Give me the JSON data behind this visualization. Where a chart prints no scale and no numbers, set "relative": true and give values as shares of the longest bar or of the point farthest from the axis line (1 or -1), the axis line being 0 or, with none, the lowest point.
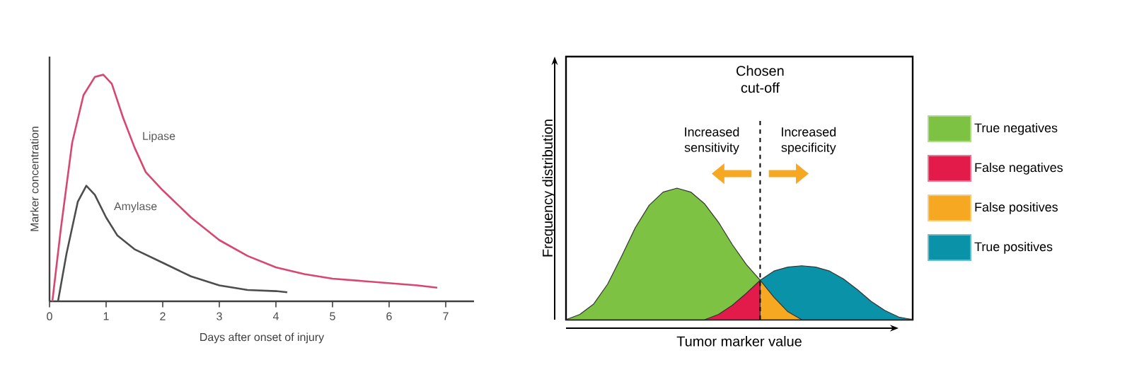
{
  "chart_data": [
    {
      "type": "line",
      "relative": true,
      "xlim": [
        0,
        7.5
      ],
      "xticks": [
        0,
        1,
        2,
        3,
        4,
        5,
        6,
        7
      ],
      "xlabel": "Days after onset of injury",
      "ylabel": "Marker concentration",
      "marker": "none",
      "line_style": "solid",
      "series": [
        {
          "name": "Lipase",
          "color": "#d9466f",
          "x": [
            0.05,
            0.2,
            0.4,
            0.6,
            0.8,
            0.95,
            1.1,
            1.3,
            1.5,
            1.7,
            2.0,
            2.5,
            3.0,
            3.5,
            4.0,
            4.5,
            5.0,
            5.5,
            6.0,
            6.5,
            6.85
          ],
          "values": [
            0,
            0.32,
            0.7,
            0.91,
            0.99,
            1.0,
            0.96,
            0.81,
            0.68,
            0.57,
            0.49,
            0.37,
            0.27,
            0.2,
            0.15,
            0.12,
            0.1,
            0.09,
            0.08,
            0.07,
            0.06
          ]
        },
        {
          "name": "Amylase",
          "color": "#4d4d4d",
          "x": [
            0.15,
            0.3,
            0.5,
            0.65,
            0.8,
            1.0,
            1.2,
            1.5,
            2.0,
            2.5,
            3.0,
            3.5,
            4.0,
            4.2
          ],
          "values": [
            0,
            0.21,
            0.44,
            0.51,
            0.47,
            0.37,
            0.29,
            0.23,
            0.17,
            0.11,
            0.07,
            0.05,
            0.045,
            0.04
          ]
        }
      ]
    },
    {
      "type": "area",
      "relative": true,
      "categories": [
        null,
        null,
        null,
        null,
        null,
        null,
        null,
        null,
        null,
        null,
        null,
        null,
        null,
        null,
        null,
        null,
        null,
        null,
        null,
        null,
        null,
        null,
        null,
        null,
        null,
        null
      ],
      "xlabel": "Tumor marker value",
      "ylabel": "Frequency distribution",
      "legend": "right",
      "annotations": [
        "Increased sensitivity",
        "Increased specificity"
      ],
      "ref_lines": [
        {
          "axis": "x",
          "label": "Chosen cut-off",
          "line_style": "dashed"
        }
      ],
      "series": [
        {
          "name": "True negatives",
          "color": "#7dc242",
          "values": [
            0,
            0.04,
            0.12,
            0.27,
            0.48,
            0.7,
            0.87,
            0.97,
            1.0,
            0.97,
            0.88,
            0.74,
            0.57,
            0.42,
            0.3,
            null,
            null,
            null,
            null,
            null,
            null,
            null,
            null,
            null,
            null,
            null
          ]
        },
        {
          "name": "False negatives",
          "color": "#e31b4b",
          "values": [
            null,
            null,
            null,
            null,
            null,
            null,
            null,
            null,
            null,
            null,
            0,
            0.04,
            0.11,
            0.2,
            0.3,
            null,
            null,
            null,
            null,
            null,
            null,
            null,
            null,
            null,
            null,
            null
          ]
        },
        {
          "name": "False positives",
          "color": "#f7a823",
          "values": [
            null,
            null,
            null,
            null,
            null,
            null,
            null,
            null,
            null,
            null,
            null,
            null,
            null,
            null,
            0.3,
            0.17,
            0.06,
            0,
            null,
            null,
            null,
            null,
            null,
            null,
            null,
            null
          ]
        },
        {
          "name": "True positives",
          "color": "#0a93a8",
          "values": [
            null,
            null,
            null,
            null,
            null,
            null,
            null,
            null,
            null,
            null,
            null,
            null,
            null,
            null,
            0.3,
            0.37,
            0.4,
            0.41,
            0.4,
            0.37,
            0.31,
            0.23,
            0.14,
            0.07,
            0.02,
            0
          ]
        }
      ]
    }
  ]
}
